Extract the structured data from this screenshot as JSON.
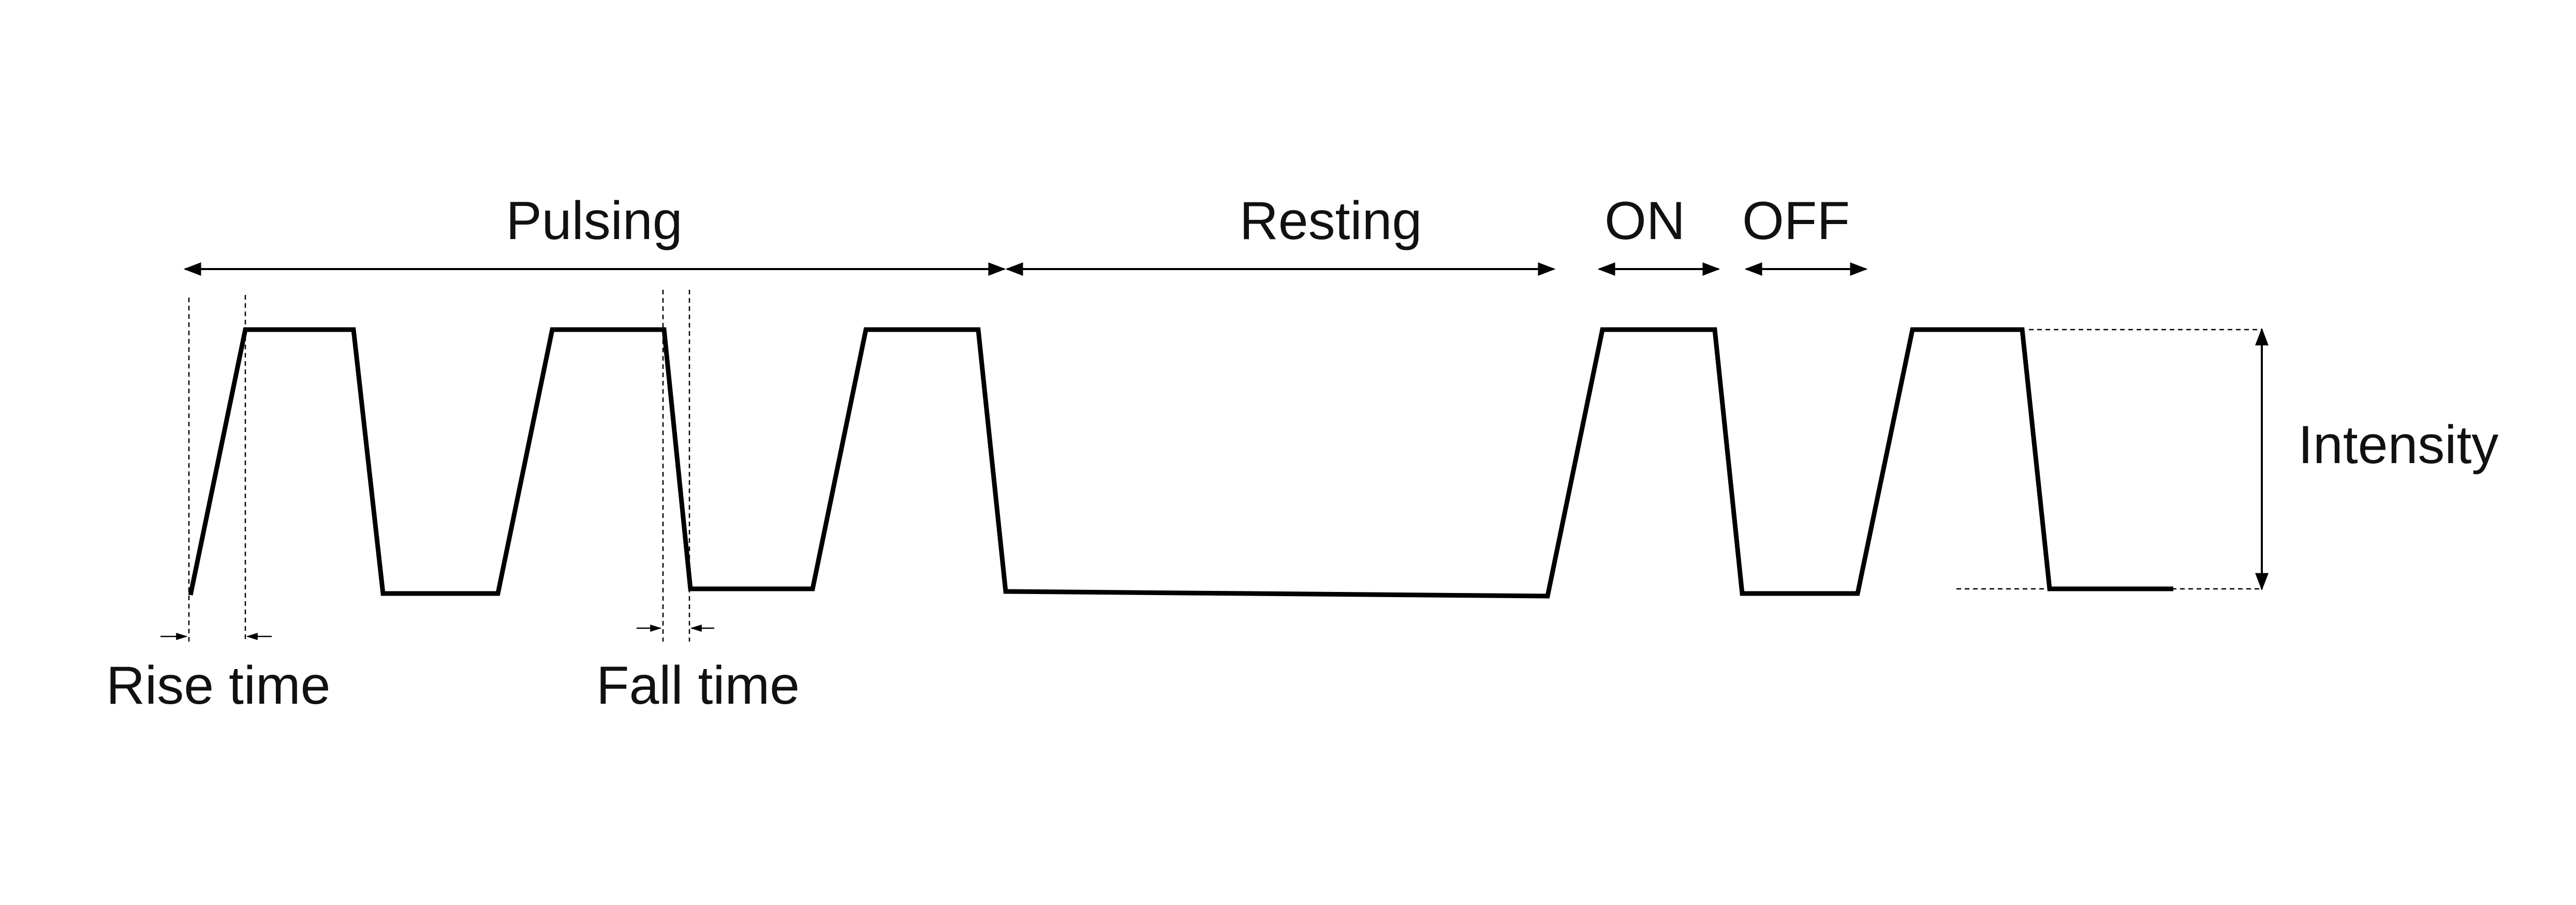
{
  "labels": {
    "pulsing": "Pulsing",
    "resting": "Resting",
    "on": "ON",
    "off": "OFF",
    "intensity": "Intensity",
    "rise_time": "Rise time",
    "fall_time": "Fall time"
  },
  "colors": {
    "line": "#000000",
    "text": "#111111",
    "background": "#ffffff"
  }
}
